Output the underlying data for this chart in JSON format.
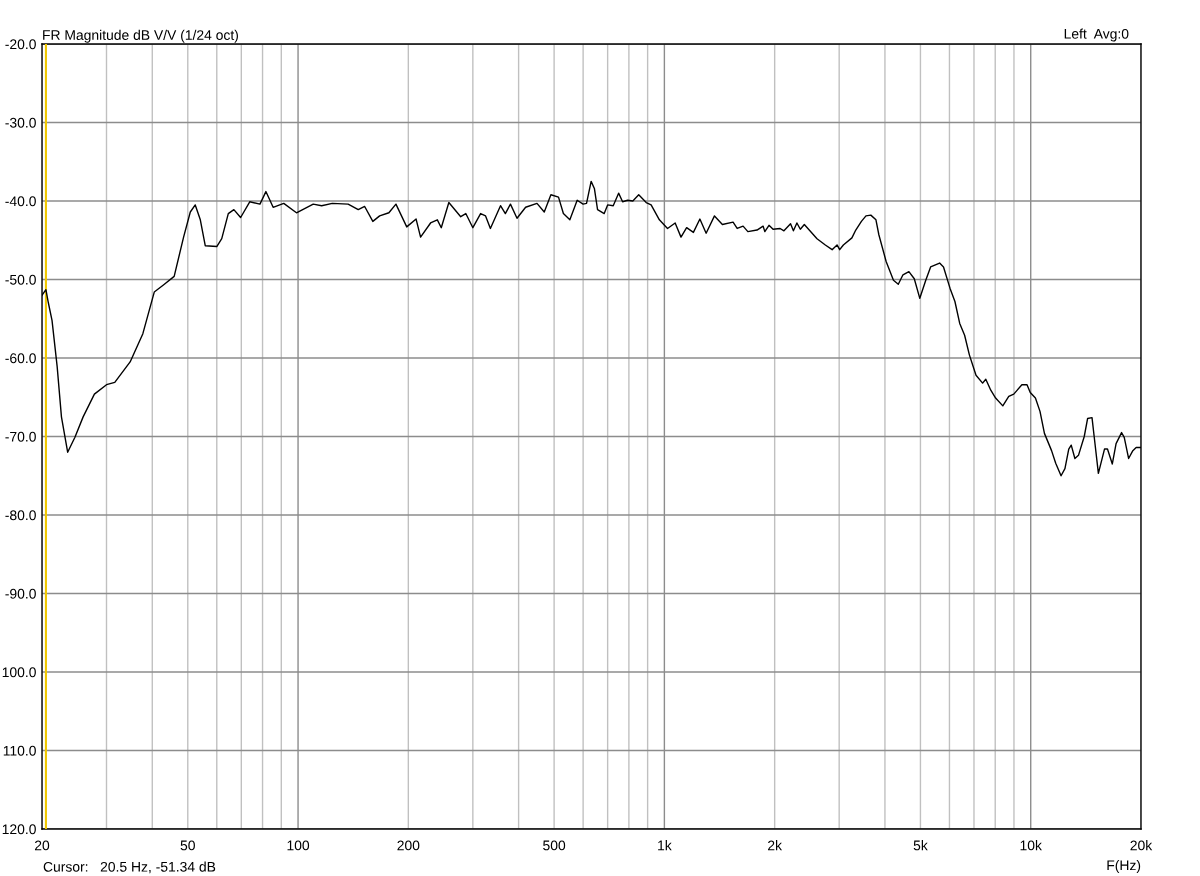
{
  "chart_data": {
    "type": "line",
    "title": "FR Magnitude dB V/V (1/24 oct)",
    "xlabel": "F(Hz)",
    "annotations": [
      "Left  Avg:0",
      "Cursor:   20.5 Hz, -51.34 dB"
    ],
    "log": "x",
    "grid": true,
    "line_style": "solid",
    "xlim": [
      20,
      20000
    ],
    "ylim": [
      -120,
      -20
    ],
    "xticks": [
      {
        "value": 20,
        "label": "20"
      },
      {
        "value": 30,
        "label": null
      },
      {
        "value": 40,
        "label": null
      },
      {
        "value": 50,
        "label": "50"
      },
      {
        "value": 60,
        "label": null
      },
      {
        "value": 70,
        "label": null
      },
      {
        "value": 80,
        "label": null
      },
      {
        "value": 90,
        "label": null
      },
      {
        "value": 100,
        "label": "100"
      },
      {
        "value": 200,
        "label": "200"
      },
      {
        "value": 300,
        "label": null
      },
      {
        "value": 400,
        "label": null
      },
      {
        "value": 500,
        "label": "500"
      },
      {
        "value": 600,
        "label": null
      },
      {
        "value": 700,
        "label": null
      },
      {
        "value": 800,
        "label": null
      },
      {
        "value": 900,
        "label": null
      },
      {
        "value": 1000,
        "label": "1k"
      },
      {
        "value": 2000,
        "label": "2k"
      },
      {
        "value": 3000,
        "label": null
      },
      {
        "value": 4000,
        "label": null
      },
      {
        "value": 5000,
        "label": "5k"
      },
      {
        "value": 6000,
        "label": null
      },
      {
        "value": 7000,
        "label": null
      },
      {
        "value": 8000,
        "label": null
      },
      {
        "value": 9000,
        "label": null
      },
      {
        "value": 10000,
        "label": "10k"
      },
      {
        "value": 20000,
        "label": "20k"
      }
    ],
    "yticks": [
      {
        "value": -20,
        "label": "-20.0"
      },
      {
        "value": -30,
        "label": "-30.0"
      },
      {
        "value": -40,
        "label": "-40.0"
      },
      {
        "value": -50,
        "label": "-50.0"
      },
      {
        "value": -60,
        "label": "-60.0"
      },
      {
        "value": -70,
        "label": "-70.0"
      },
      {
        "value": -80,
        "label": "-80.0"
      },
      {
        "value": -90,
        "label": "-90.0"
      },
      {
        "value": -100,
        "label": "100.0"
      },
      {
        "value": -110,
        "label": "110.0"
      },
      {
        "value": -120,
        "label": "120.0"
      }
    ],
    "ref_lines": [
      {
        "axis": "x",
        "value": 20.5,
        "color": "#f0c800"
      }
    ],
    "series": [
      {
        "color": "#000000",
        "x": [
          20,
          20.5,
          20.8,
          21.3,
          22.0,
          22.6,
          23.5,
          24.6,
          25.9,
          27.8,
          30,
          31.6,
          34.8,
          37.7,
          40.5,
          42.9,
          45.9,
          48.7,
          50.8,
          52.4,
          54.1,
          55.8,
          60,
          61.9,
          64.5,
          66.8,
          69.7,
          73.8,
          78.7,
          81.7,
          85.5,
          91.4,
          99,
          110,
          116,
          124,
          137,
          146,
          152,
          160,
          167,
          177,
          185,
          198,
          210,
          216,
          230,
          240,
          246,
          258,
          278,
          287,
          300,
          315,
          325,
          335,
          357,
          368,
          380,
          396,
          418,
          449,
          470,
          490,
          514,
          530,
          552,
          578,
          600,
          613,
          631,
          644,
          657,
          685,
          700,
          725,
          750,
          769,
          794,
          820,
          851,
          892,
          920,
          969,
          1020,
          1070,
          1110,
          1150,
          1200,
          1250,
          1300,
          1370,
          1440,
          1540,
          1580,
          1640,
          1690,
          1790,
          1860,
          1880,
          1930,
          1980,
          2070,
          2120,
          2210,
          2250,
          2300,
          2350,
          2410,
          2610,
          2750,
          2870,
          2960,
          3010,
          3080,
          3250,
          3330,
          3450,
          3550,
          3660,
          3780,
          3850,
          4030,
          4220,
          4350,
          4480,
          4650,
          4810,
          4980,
          5170,
          5330,
          5640,
          5780,
          6020,
          6210,
          6400,
          6600,
          6800,
          7090,
          7390,
          7540,
          7780,
          8020,
          8390,
          8710,
          8990,
          9460,
          9770,
          9970,
          10300,
          10600,
          10900,
          11400,
          11700,
          12100,
          12400,
          12700,
          12900,
          13200,
          13500,
          14000,
          14300,
          14700,
          14900,
          15300,
          15900,
          16200,
          16700,
          17100,
          17700,
          18000,
          18500,
          19000,
          19400,
          20000
        ],
        "values": [
          -52.0,
          -51.3,
          -52.9,
          -55.2,
          -61.1,
          -67.5,
          -72.0,
          -70.1,
          -67.5,
          -64.6,
          -63.4,
          -63.1,
          -60.5,
          -56.9,
          -51.6,
          -50.7,
          -49.6,
          -44.6,
          -41.4,
          -40.5,
          -42.4,
          -45.7,
          -45.8,
          -44.8,
          -41.6,
          -41.1,
          -42.1,
          -40.1,
          -40.4,
          -38.8,
          -40.8,
          -40.3,
          -41.5,
          -40.4,
          -40.6,
          -40.3,
          -40.4,
          -41.1,
          -40.7,
          -42.6,
          -41.9,
          -41.5,
          -40.4,
          -43.3,
          -42.3,
          -44.6,
          -42.8,
          -42.4,
          -43.4,
          -40.2,
          -42.0,
          -41.6,
          -43.4,
          -41.6,
          -41.9,
          -43.5,
          -40.6,
          -41.6,
          -40.4,
          -42.2,
          -40.8,
          -40.3,
          -41.4,
          -39.2,
          -39.5,
          -41.6,
          -42.4,
          -39.9,
          -40.4,
          -40.3,
          -37.5,
          -38.4,
          -41.1,
          -41.6,
          -40.5,
          -40.6,
          -39.0,
          -40.1,
          -39.9,
          -40.0,
          -39.2,
          -40.2,
          -40.5,
          -42.4,
          -43.5,
          -42.8,
          -44.6,
          -43.4,
          -44.0,
          -42.3,
          -44.1,
          -41.9,
          -43.0,
          -42.7,
          -43.5,
          -43.2,
          -43.9,
          -43.7,
          -43.2,
          -43.9,
          -43.1,
          -43.6,
          -43.5,
          -43.8,
          -42.9,
          -43.8,
          -42.8,
          -43.6,
          -43.0,
          -44.8,
          -45.6,
          -46.2,
          -45.6,
          -46.2,
          -45.6,
          -44.7,
          -43.7,
          -42.6,
          -41.9,
          -41.8,
          -42.4,
          -44.3,
          -47.7,
          -50.1,
          -50.6,
          -49.4,
          -49.0,
          -49.9,
          -52.4,
          -50.1,
          -48.4,
          -47.9,
          -48.4,
          -51.1,
          -52.8,
          -55.6,
          -57.1,
          -59.6,
          -62.2,
          -63.2,
          -62.7,
          -64.1,
          -65.1,
          -66.1,
          -64.9,
          -64.6,
          -63.4,
          -63.4,
          -64.4,
          -65.1,
          -66.8,
          -69.6,
          -71.8,
          -73.4,
          -75.0,
          -74.1,
          -71.6,
          -71.1,
          -72.8,
          -72.4,
          -70.0,
          -67.7,
          -67.6,
          -70.0,
          -74.7,
          -71.6,
          -71.6,
          -73.5,
          -70.9,
          -69.5,
          -70.1,
          -72.8,
          -71.8,
          -71.4,
          -71.4
        ]
      }
    ]
  }
}
